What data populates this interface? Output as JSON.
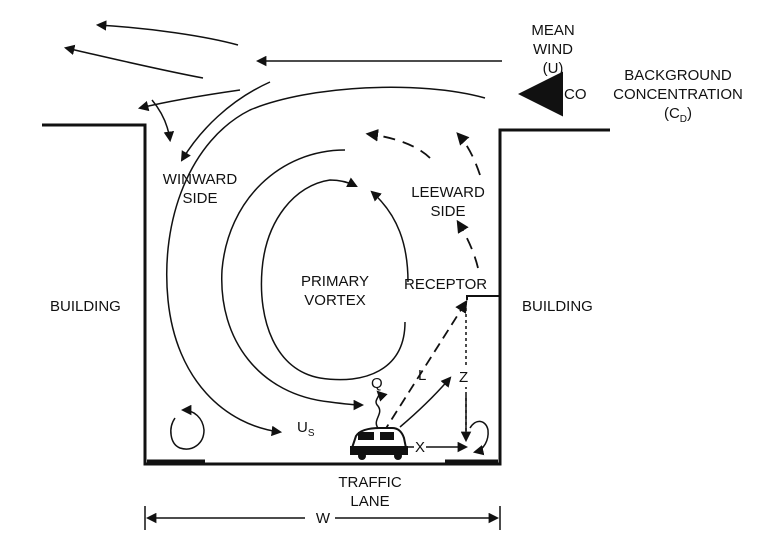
{
  "labels": {
    "mean_wind": [
      "MEAN",
      "WIND",
      "(U)"
    ],
    "co": "CO",
    "background": [
      "BACKGROUND",
      "CONCENTRATION"
    ],
    "background_symbol": "(C",
    "background_sub": "D",
    "background_close": ")",
    "winward": [
      "WINWARD",
      "SIDE"
    ],
    "leeward": [
      "LEEWARD",
      "SIDE"
    ],
    "primary_vortex": [
      "PRIMARY",
      "VORTEX"
    ],
    "receptor": "RECEPTOR",
    "building_left": "BUILDING",
    "building_right": "BUILDING",
    "q": "Q",
    "l": "L",
    "z": "Z",
    "x": "X",
    "us_main": "U",
    "us_sub": "S",
    "traffic_lane": [
      "TRAFFIC",
      "LANE"
    ],
    "width": "W"
  }
}
